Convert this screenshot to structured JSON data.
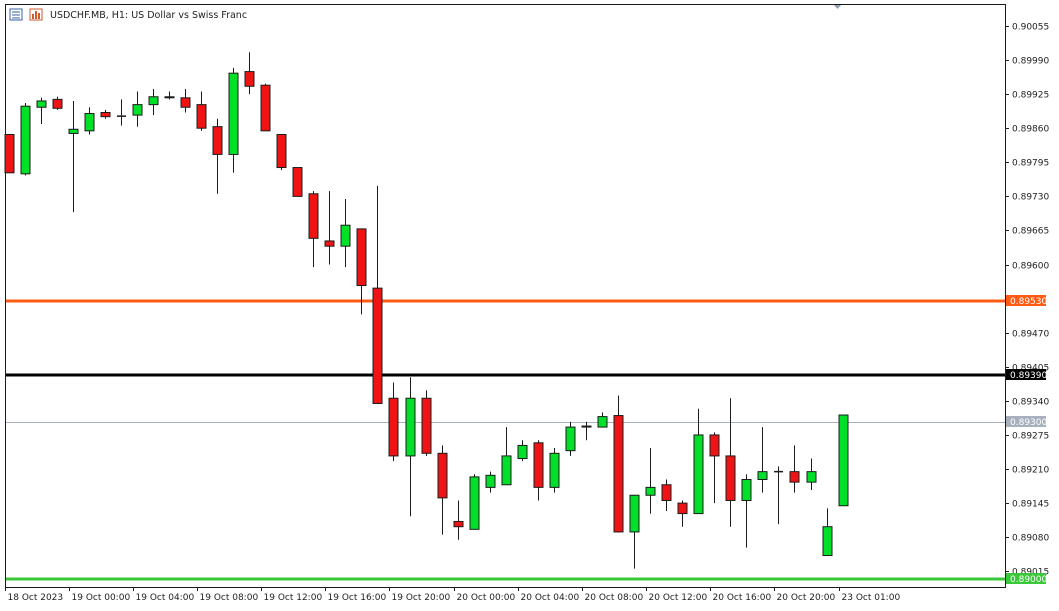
{
  "header": {
    "symbol": "USDCHF.MB",
    "timeframe": "H1",
    "description": "US Dollar vs Swiss Franc",
    "title": "USDCHF.MB, H1:  US Dollar vs Swiss Franc"
  },
  "colors": {
    "bull": "#00e02a",
    "bear": "#ef1414",
    "wick": "#1b1b1b",
    "orange_line": "#ff5b14",
    "black_line": "#000000",
    "green_line": "#3ac83a",
    "price_line": "#a6b1bd",
    "axis": "#222222"
  },
  "chart_data": {
    "type": "candlestick",
    "title": "USDCHF.MB, H1:  US Dollar vs Swiss Franc",
    "ylim": [
      0.88985,
      0.90095
    ],
    "y_ticks": [
      "0.90055",
      "0.89990",
      "0.89925",
      "0.89860",
      "0.89795",
      "0.89730",
      "0.89665",
      "0.89600",
      "0.89470",
      "0.89405",
      "0.89340",
      "0.89275",
      "0.89210",
      "0.89145",
      "0.89080",
      "0.89015"
    ],
    "x_tick_labels": [
      {
        "label": "18 Oct 2023",
        "index": 0
      },
      {
        "label": "19 Oct 00:00",
        "index": 4
      },
      {
        "label": "19 Oct 04:00",
        "index": 8
      },
      {
        "label": "19 Oct 08:00",
        "index": 12
      },
      {
        "label": "19 Oct 12:00",
        "index": 16
      },
      {
        "label": "19 Oct 16:00",
        "index": 20
      },
      {
        "label": "19 Oct 20:00",
        "index": 24
      },
      {
        "label": "20 Oct 00:00",
        "index": 28
      },
      {
        "label": "20 Oct 04:00",
        "index": 32
      },
      {
        "label": "20 Oct 08:00",
        "index": 36
      },
      {
        "label": "20 Oct 12:00",
        "index": 40
      },
      {
        "label": "20 Oct 16:00",
        "index": 44
      },
      {
        "label": "20 Oct 20:00",
        "index": 48
      },
      {
        "label": "23 Oct 01:00",
        "index": 52
      }
    ],
    "candles": [
      {
        "o": 0.89848,
        "h": 0.89848,
        "l": 0.89775,
        "c": 0.89775
      },
      {
        "o": 0.89773,
        "h": 0.89908,
        "l": 0.8977,
        "c": 0.89902
      },
      {
        "o": 0.899,
        "h": 0.89918,
        "l": 0.89868,
        "c": 0.89912
      },
      {
        "o": 0.89915,
        "h": 0.8992,
        "l": 0.89895,
        "c": 0.89898
      },
      {
        "o": 0.8985,
        "h": 0.89912,
        "l": 0.897,
        "c": 0.89858
      },
      {
        "o": 0.89855,
        "h": 0.899,
        "l": 0.89848,
        "c": 0.89888
      },
      {
        "o": 0.8989,
        "h": 0.89895,
        "l": 0.89878,
        "c": 0.89882
      },
      {
        "o": 0.89883,
        "h": 0.89915,
        "l": 0.89865,
        "c": 0.89883
      },
      {
        "o": 0.89885,
        "h": 0.8993,
        "l": 0.89863,
        "c": 0.89905
      },
      {
        "o": 0.89905,
        "h": 0.89935,
        "l": 0.89885,
        "c": 0.8992
      },
      {
        "o": 0.8992,
        "h": 0.8993,
        "l": 0.89915,
        "c": 0.89918
      },
      {
        "o": 0.89918,
        "h": 0.89935,
        "l": 0.8989,
        "c": 0.899
      },
      {
        "o": 0.89905,
        "h": 0.8993,
        "l": 0.89855,
        "c": 0.8986
      },
      {
        "o": 0.89863,
        "h": 0.89878,
        "l": 0.89735,
        "c": 0.8981
      },
      {
        "o": 0.8981,
        "h": 0.89975,
        "l": 0.89775,
        "c": 0.89965
      },
      {
        "o": 0.89968,
        "h": 0.90005,
        "l": 0.89925,
        "c": 0.8994
      },
      {
        "o": 0.89942,
        "h": 0.89945,
        "l": 0.89855,
        "c": 0.89855
      },
      {
        "o": 0.89848,
        "h": 0.89848,
        "l": 0.8978,
        "c": 0.89785
      },
      {
        "o": 0.89785,
        "h": 0.89785,
        "l": 0.8973,
        "c": 0.8973
      },
      {
        "o": 0.89735,
        "h": 0.8974,
        "l": 0.89595,
        "c": 0.8965
      },
      {
        "o": 0.89645,
        "h": 0.8974,
        "l": 0.896,
        "c": 0.89635
      },
      {
        "o": 0.89635,
        "h": 0.89725,
        "l": 0.89595,
        "c": 0.89675
      },
      {
        "o": 0.89668,
        "h": 0.89668,
        "l": 0.89505,
        "c": 0.8956
      },
      {
        "o": 0.89555,
        "h": 0.8975,
        "l": 0.89335,
        "c": 0.89335
      },
      {
        "o": 0.89345,
        "h": 0.89375,
        "l": 0.89225,
        "c": 0.89235
      },
      {
        "o": 0.89235,
        "h": 0.89385,
        "l": 0.8912,
        "c": 0.89345
      },
      {
        "o": 0.89345,
        "h": 0.8936,
        "l": 0.89235,
        "c": 0.8924
      },
      {
        "o": 0.8924,
        "h": 0.89255,
        "l": 0.89085,
        "c": 0.89155
      },
      {
        "o": 0.8911,
        "h": 0.8915,
        "l": 0.89075,
        "c": 0.891
      },
      {
        "o": 0.89095,
        "h": 0.892,
        "l": 0.89095,
        "c": 0.89195
      },
      {
        "o": 0.89175,
        "h": 0.89205,
        "l": 0.89165,
        "c": 0.89198
      },
      {
        "o": 0.8918,
        "h": 0.8929,
        "l": 0.8918,
        "c": 0.89235
      },
      {
        "o": 0.8923,
        "h": 0.89265,
        "l": 0.89225,
        "c": 0.89255
      },
      {
        "o": 0.8926,
        "h": 0.89265,
        "l": 0.8915,
        "c": 0.89175
      },
      {
        "o": 0.89175,
        "h": 0.8925,
        "l": 0.89165,
        "c": 0.8924
      },
      {
        "o": 0.89245,
        "h": 0.893,
        "l": 0.89235,
        "c": 0.8929
      },
      {
        "o": 0.8929,
        "h": 0.893,
        "l": 0.89265,
        "c": 0.89292
      },
      {
        "o": 0.8929,
        "h": 0.89318,
        "l": 0.8929,
        "c": 0.8931
      },
      {
        "o": 0.89312,
        "h": 0.8935,
        "l": 0.8909,
        "c": 0.8909
      },
      {
        "o": 0.8909,
        "h": 0.8916,
        "l": 0.8902,
        "c": 0.8916
      },
      {
        "o": 0.8916,
        "h": 0.8925,
        "l": 0.89125,
        "c": 0.89175
      },
      {
        "o": 0.8918,
        "h": 0.8919,
        "l": 0.8913,
        "c": 0.8915
      },
      {
        "o": 0.89145,
        "h": 0.8915,
        "l": 0.891,
        "c": 0.89125
      },
      {
        "o": 0.89125,
        "h": 0.89325,
        "l": 0.89125,
        "c": 0.89275
      },
      {
        "o": 0.89275,
        "h": 0.8928,
        "l": 0.89145,
        "c": 0.89235
      },
      {
        "o": 0.89235,
        "h": 0.89345,
        "l": 0.891,
        "c": 0.8915
      },
      {
        "o": 0.8915,
        "h": 0.892,
        "l": 0.8906,
        "c": 0.8919
      },
      {
        "o": 0.8919,
        "h": 0.8929,
        "l": 0.89165,
        "c": 0.89205
      },
      {
        "o": 0.89205,
        "h": 0.89215,
        "l": 0.89105,
        "c": 0.89205
      },
      {
        "o": 0.89205,
        "h": 0.89255,
        "l": 0.89165,
        "c": 0.89185
      },
      {
        "o": 0.89185,
        "h": 0.8923,
        "l": 0.8917,
        "c": 0.89205
      },
      {
        "o": 0.89045,
        "h": 0.89135,
        "l": 0.89045,
        "c": 0.891
      },
      {
        "o": 0.8914,
        "h": 0.89313,
        "l": 0.8914,
        "c": 0.89313
      }
    ],
    "horizontal_lines": [
      {
        "price": 0.8953,
        "label": "0.89530",
        "color": "#ff5b14",
        "width": 3
      },
      {
        "price": 0.8939,
        "label": "0.89390",
        "color": "#000000",
        "width": 3
      },
      {
        "price": 0.893,
        "label": "0.89300",
        "color": "#a6b1bd",
        "width": 1
      },
      {
        "price": 0.89,
        "label": "0.89000",
        "color": "#3ac83a",
        "width": 3
      }
    ]
  }
}
